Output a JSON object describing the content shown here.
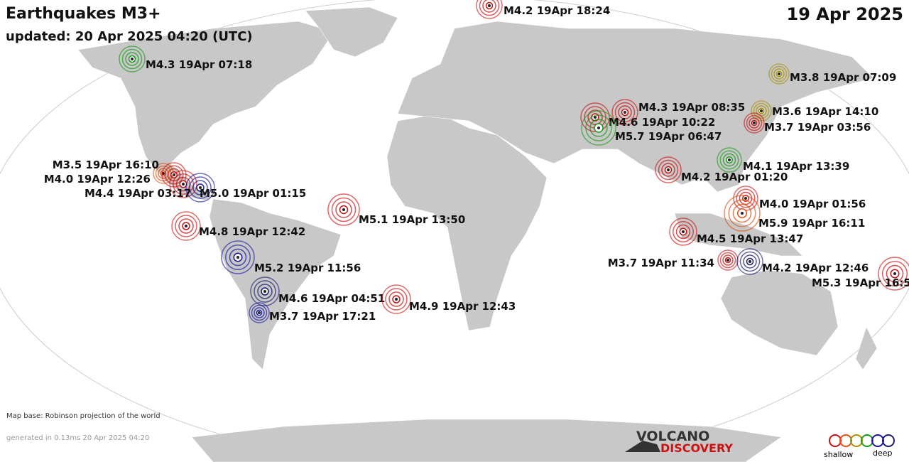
{
  "header": {
    "title": "Earthquakes M3+",
    "updated": "updated: 20 Apr 2025 04:20 (UTC)",
    "date": "19 Apr 2025"
  },
  "quakes": [
    {
      "label": "M4.2 19Apr 18:24",
      "color": "#cc1111"
    },
    {
      "label": "M4.3 19Apr 07:18",
      "color": "#1a9a1a"
    },
    {
      "label": "M3.8 19Apr 07:09",
      "color": "#a89000"
    },
    {
      "label": "M4.3 19Apr 08:35",
      "color": "#cc1111"
    },
    {
      "label": "M4.6 19Apr 10:22",
      "color": "#cc1111"
    },
    {
      "label": "M3.6 19Apr 14:10",
      "color": "#a89000"
    },
    {
      "label": "M3.7 19Apr 03:56",
      "color": "#cc1111"
    },
    {
      "label": "M5.7 19Apr 06:47",
      "color": "#1a9a1a"
    },
    {
      "label": "M4.1 19Apr 13:39",
      "color": "#1a9a1a"
    },
    {
      "label": "M3.5 19Apr 16:10",
      "color": "#e05010"
    },
    {
      "label": "M4.0 19Apr 12:26",
      "color": "#cc1111"
    },
    {
      "label": "M4.2 19Apr 01:20",
      "color": "#cc1111"
    },
    {
      "label": "M4.4 19Apr 03:17",
      "color": "#cc1111"
    },
    {
      "label": "M5.0 19Apr 01:15",
      "color": "#1a1aa0"
    },
    {
      "label": "M4.0 19Apr 01:56",
      "color": "#cc1111"
    },
    {
      "label": "M5.1 19Apr 13:50",
      "color": "#cc1111"
    },
    {
      "label": "M5.9 19Apr 16:11",
      "color": "#e05010"
    },
    {
      "label": "M4.8 19Apr 12:42",
      "color": "#cc1111"
    },
    {
      "label": "M4.5 19Apr 13:47",
      "color": "#cc1111"
    },
    {
      "label": "M5.2 19Apr 11:56",
      "color": "#1a1aa0"
    },
    {
      "label": "M3.7 19Apr 11:34",
      "color": "#cc1111"
    },
    {
      "label": "M4.2 19Apr 12:46",
      "color": "#1a1a70"
    },
    {
      "label": "M5.3 19Apr 16:5",
      "color": "#cc1111"
    },
    {
      "label": "M4.6 19Apr 04:51",
      "color": "#1a1a70"
    },
    {
      "label": "M4.9 19Apr 12:43",
      "color": "#cc1111"
    },
    {
      "label": "M3.7 19Apr 17:21",
      "color": "#1a1aa0"
    }
  ],
  "footer": {
    "map_base": "Map base: Robinson projection of the world",
    "generated": "generated in 0.13ms 20 Apr 2025 04:20",
    "logo_top": "VOLCANO",
    "logo_bottom": "DISCOVERY",
    "legend_shallow": "shallow",
    "legend_deep": "deep"
  }
}
